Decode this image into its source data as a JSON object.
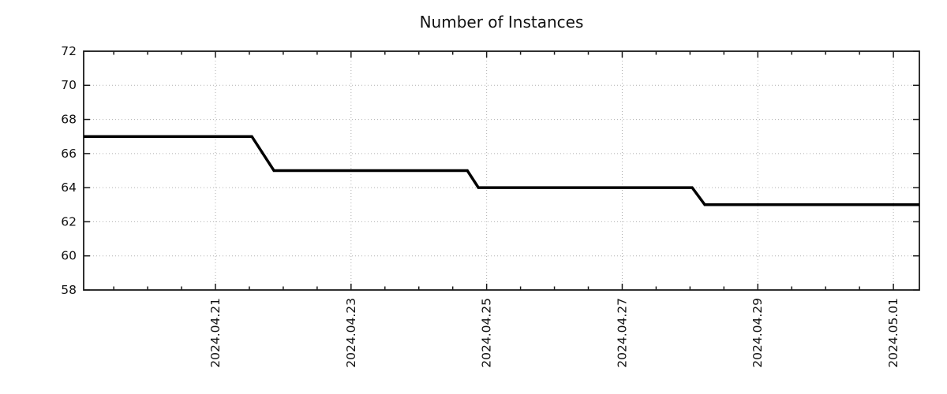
{
  "chart_data": {
    "type": "line",
    "title": "Number of Instances",
    "grid": true,
    "legend": "none",
    "colors": {
      "line": "#000000",
      "grid": "#b0b0b0",
      "axis": "#1a1a1a",
      "text": "#111111",
      "background": "#ffffff"
    },
    "x_axis": {
      "range_days": [
        -1.944,
        10.383
      ],
      "major_ticks": [
        {
          "pos": 0,
          "label": "2024.04.21"
        },
        {
          "pos": 2,
          "label": "2024.04.23"
        },
        {
          "pos": 4,
          "label": "2024.04.25"
        },
        {
          "pos": 6,
          "label": "2024.04.27"
        },
        {
          "pos": 8,
          "label": "2024.04.29"
        },
        {
          "pos": 10,
          "label": "2024.05.01"
        }
      ],
      "minor_tick_step": 0.5,
      "label_rotation": -90
    },
    "y_axis": {
      "range": [
        58,
        72
      ],
      "major_ticks": [
        58,
        60,
        62,
        64,
        66,
        68,
        70,
        72
      ]
    },
    "series": [
      {
        "points": [
          [
            -1.944,
            67
          ],
          [
            0.536,
            67
          ],
          [
            0.862,
            65
          ],
          [
            3.715,
            65
          ],
          [
            3.878,
            64
          ],
          [
            7.032,
            64
          ],
          [
            7.218,
            63
          ],
          [
            10.383,
            63
          ]
        ]
      }
    ]
  }
}
